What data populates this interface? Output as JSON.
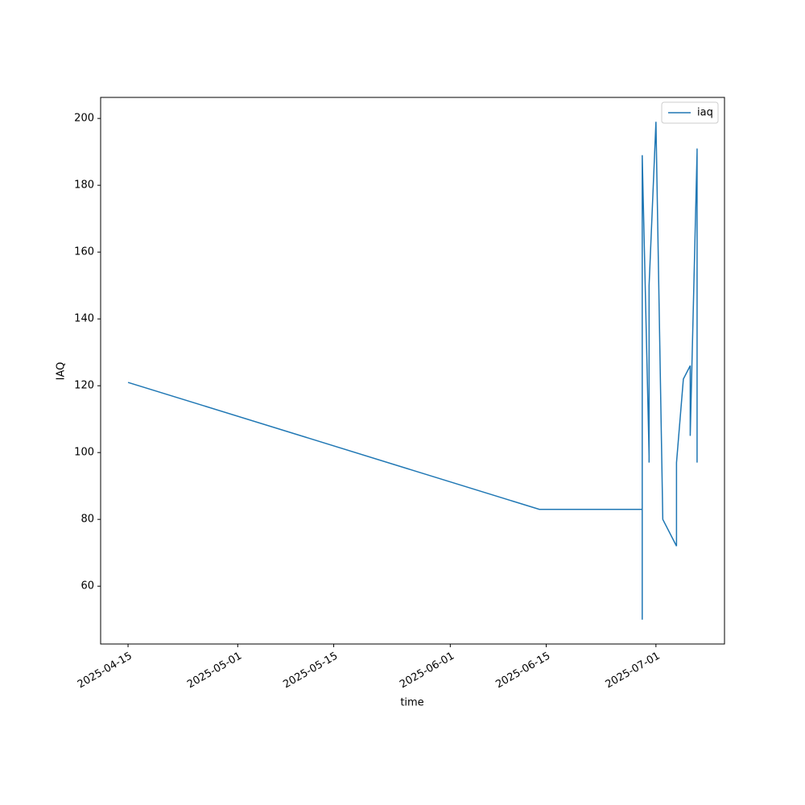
{
  "chart_data": {
    "type": "line",
    "x_label": "time",
    "y_label": "IAQ",
    "x": [
      "2025-04-15",
      "2025-06-14",
      "2025-06-29",
      "2025-06-29",
      "2025-06-29",
      "2025-06-30",
      "2025-06-30",
      "2025-06-30",
      "2025-07-01",
      "2025-07-02",
      "2025-07-04",
      "2025-07-04",
      "2025-07-05",
      "2025-07-06",
      "2025-07-06",
      "2025-07-07",
      "2025-07-07",
      "2025-07-07"
    ],
    "series": [
      {
        "name": "iaq",
        "color": "#1f77b4",
        "values": [
          121,
          83,
          83,
          50,
          189,
          99,
          97,
          150,
          199,
          80,
          72,
          97,
          122,
          126,
          105,
          190,
          191,
          97
        ]
      }
    ],
    "xlim": [
      "2025-04-11",
      "2025-07-11"
    ],
    "xticks": [
      "2025-04-15",
      "2025-05-01",
      "2025-05-15",
      "2025-06-01",
      "2025-06-15",
      "2025-07-01"
    ],
    "ylim": [
      42.7,
      206.3
    ],
    "yticks": [
      60,
      80,
      100,
      120,
      140,
      160,
      180,
      200
    ],
    "legend": "upper right"
  }
}
